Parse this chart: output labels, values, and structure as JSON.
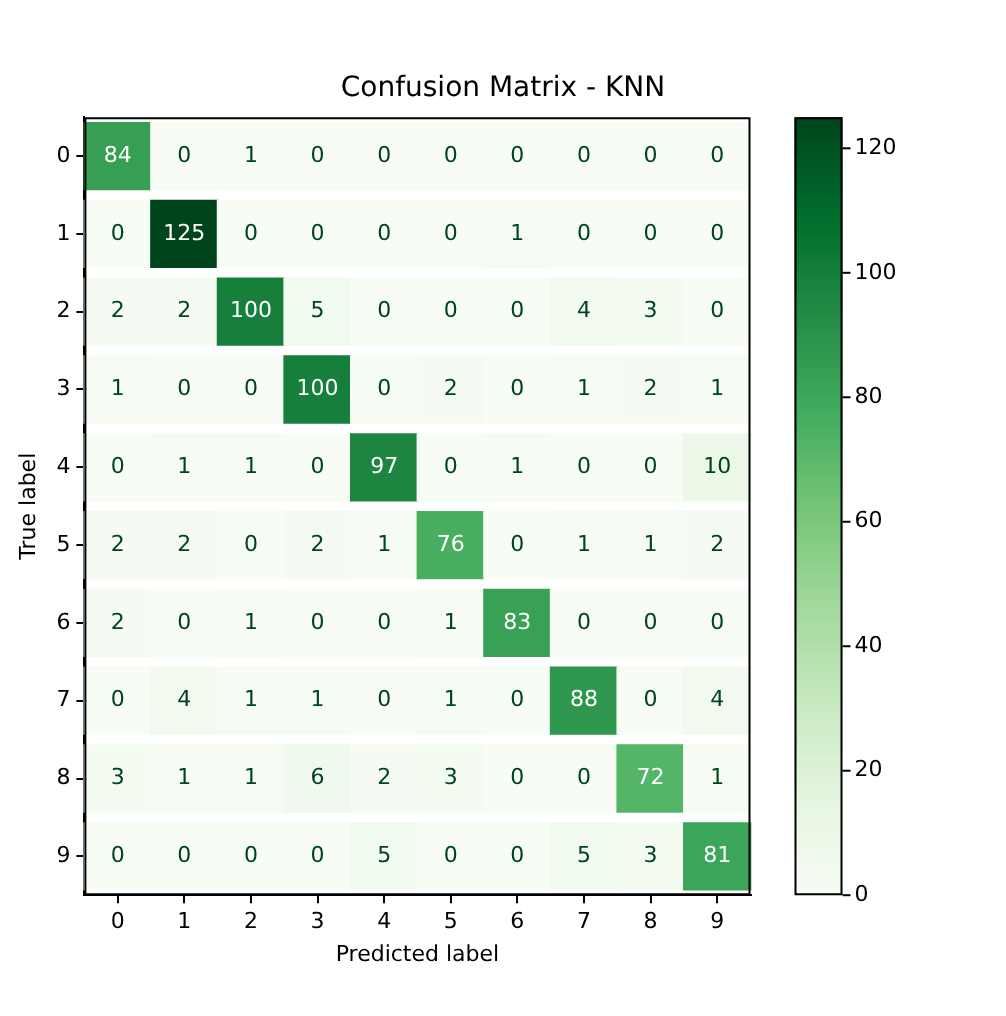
{
  "chart_data": {
    "type": "heatmap",
    "title": "Confusion Matrix - KNN",
    "xlabel": "Predicted label",
    "ylabel": "True label",
    "categories": [
      "0",
      "1",
      "2",
      "3",
      "4",
      "5",
      "6",
      "7",
      "8",
      "9"
    ],
    "y_categories": [
      "0",
      "1",
      "2",
      "3",
      "4",
      "5",
      "6",
      "7",
      "8",
      "9"
    ],
    "cells": [
      [
        84,
        0,
        1,
        0,
        0,
        0,
        0,
        0,
        0,
        0
      ],
      [
        0,
        125,
        0,
        0,
        0,
        0,
        1,
        0,
        0,
        0
      ],
      [
        2,
        2,
        100,
        5,
        0,
        0,
        0,
        4,
        3,
        0
      ],
      [
        1,
        0,
        0,
        100,
        0,
        2,
        0,
        1,
        2,
        1
      ],
      [
        0,
        1,
        1,
        0,
        97,
        0,
        1,
        0,
        0,
        10
      ],
      [
        2,
        2,
        0,
        2,
        1,
        76,
        0,
        1,
        1,
        2
      ],
      [
        2,
        0,
        1,
        0,
        0,
        1,
        83,
        0,
        0,
        0
      ],
      [
        0,
        4,
        1,
        1,
        0,
        1,
        0,
        88,
        0,
        4
      ],
      [
        3,
        1,
        1,
        6,
        2,
        3,
        0,
        0,
        72,
        1
      ],
      [
        0,
        0,
        0,
        0,
        5,
        0,
        0,
        5,
        3,
        81
      ]
    ],
    "clim": [
      0,
      125
    ],
    "cticks": [
      0,
      20,
      40,
      60,
      80,
      100,
      120
    ],
    "data_labels": true,
    "grid": false,
    "legend": false
  }
}
